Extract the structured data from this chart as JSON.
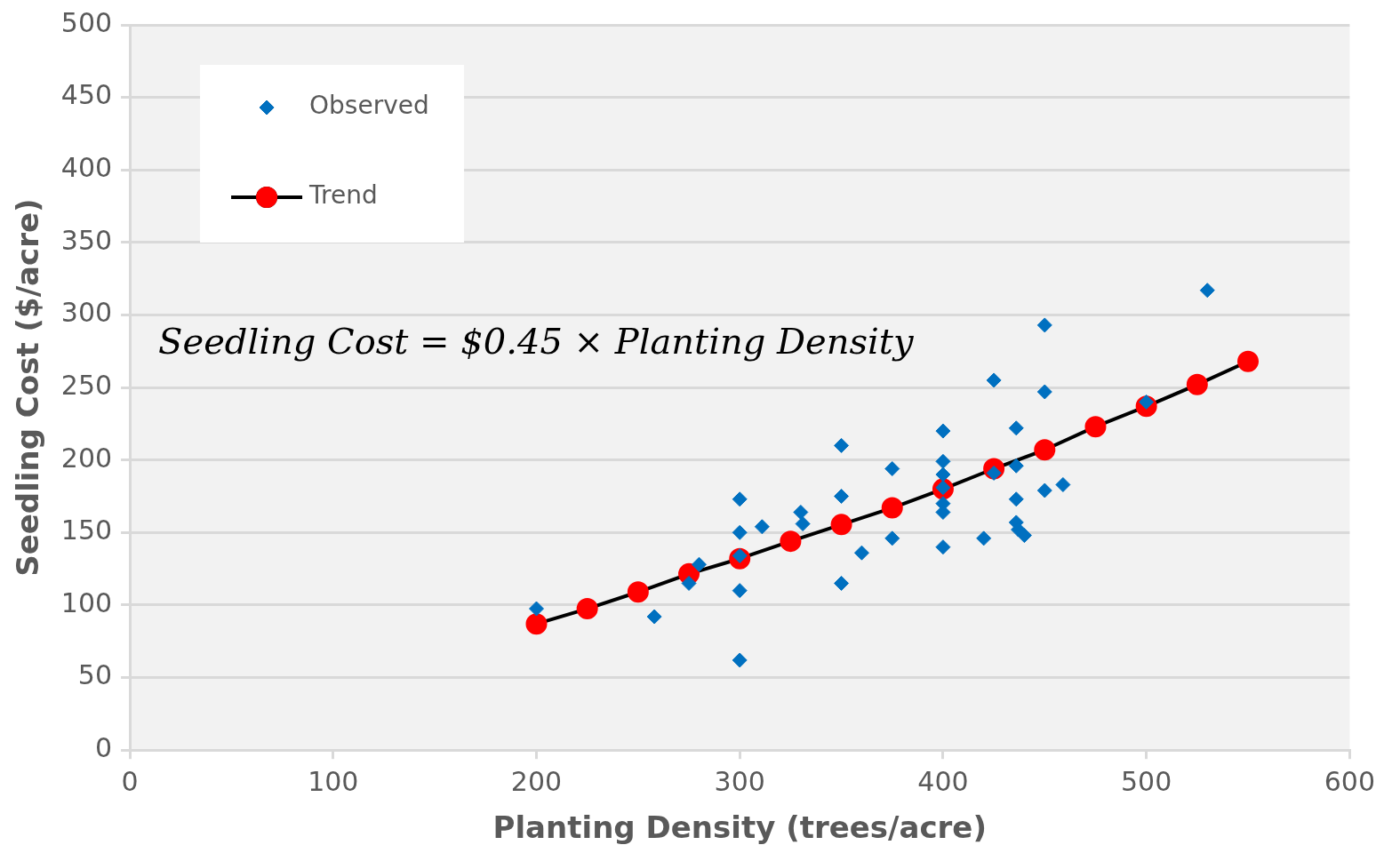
{
  "chart_data": {
    "type": "scatter",
    "xlabel": "Planting Density (trees/acre)",
    "ylabel": "Seedling Cost ($/acre)",
    "xlim": [
      0,
      600
    ],
    "xticks": [
      0,
      100,
      200,
      300,
      400,
      500,
      600
    ],
    "ylim": [
      0,
      500
    ],
    "yticks": [
      0,
      50,
      100,
      150,
      200,
      250,
      300,
      350,
      400,
      450,
      500
    ],
    "grid": "y",
    "legend": "top left",
    "annotations": [
      "Seedling Cost = $0.45 × Planting Density"
    ],
    "series": [
      {
        "name": "Observed",
        "marker": "diamond",
        "color": "#0070c0",
        "x": [
          200,
          258,
          275,
          280,
          300,
          300,
          300,
          300,
          300,
          311,
          330,
          331,
          350,
          350,
          350,
          360,
          375,
          375,
          400,
          400,
          400,
          400,
          400,
          400,
          400,
          420,
          425,
          425,
          436,
          436,
          436,
          436,
          437,
          440,
          450,
          450,
          450,
          459,
          500,
          530
        ],
        "values": [
          97.5,
          92,
          115,
          128,
          173,
          150,
          134,
          110,
          62,
          154,
          164,
          156,
          210,
          175,
          115,
          136,
          194,
          146,
          220,
          199,
          190,
          181,
          170,
          164,
          140,
          146,
          255,
          191,
          222,
          196,
          173,
          157,
          152,
          148,
          293,
          247,
          179,
          183,
          240,
          317
        ]
      },
      {
        "name": "Trend",
        "type": "line",
        "marker": "circle",
        "line_style": "solid",
        "color": "#ff0000",
        "x": [
          200,
          225,
          250,
          275,
          300,
          325,
          350,
          375,
          400,
          425,
          450,
          475,
          500,
          525,
          550
        ],
        "values": [
          87,
          97.5,
          109,
          121.5,
          132,
          144,
          155.5,
          167,
          180,
          194,
          207,
          223,
          237,
          252,
          268
        ]
      }
    ]
  }
}
